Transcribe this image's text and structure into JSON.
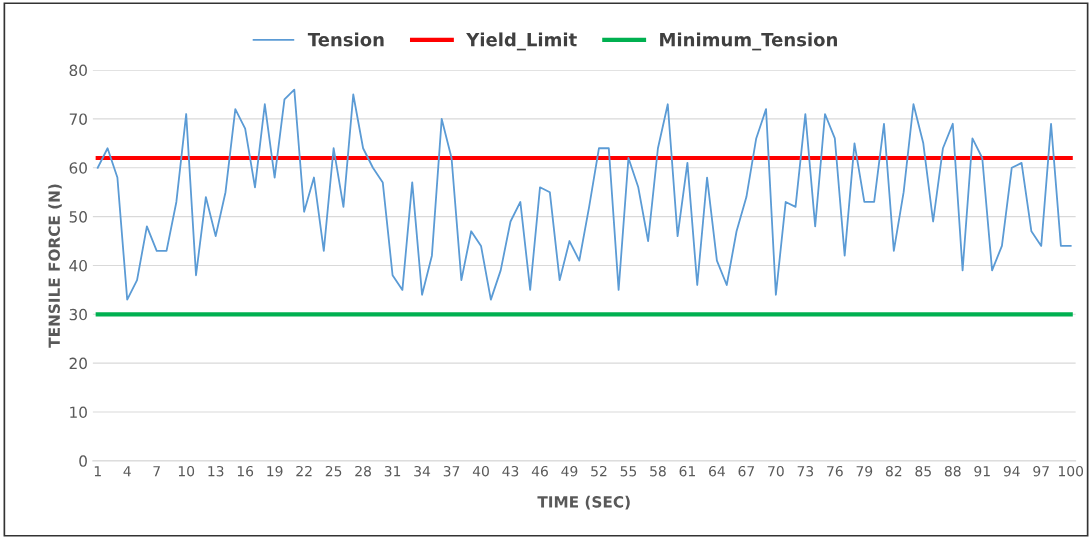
{
  "chart_data": {
    "type": "line",
    "xlabel": "TIME (SEC)",
    "ylabel": "TENSILE FORCE (N)",
    "categories": [
      "1",
      null,
      null,
      "4",
      null,
      null,
      "7",
      null,
      null,
      "10",
      null,
      null,
      "13",
      null,
      null,
      "16",
      null,
      null,
      "19",
      null,
      null,
      "22",
      null,
      null,
      "25",
      null,
      null,
      "28",
      null,
      null,
      "31",
      null,
      null,
      "34",
      null,
      null,
      "37",
      null,
      null,
      "40",
      null,
      null,
      "43",
      null,
      null,
      "46",
      null,
      null,
      "49",
      null,
      null,
      "52",
      null,
      null,
      "55",
      null,
      null,
      "58",
      null,
      null,
      "61",
      null,
      null,
      "64",
      null,
      null,
      "67",
      null,
      null,
      "70",
      null,
      null,
      "73",
      null,
      null,
      "76",
      null,
      null,
      "79",
      null,
      null,
      "82",
      null,
      null,
      "85",
      null,
      null,
      "88",
      null,
      null,
      "91",
      null,
      null,
      "94",
      null,
      null,
      "97",
      null,
      null,
      "100"
    ],
    "series": [
      {
        "name": "Tension",
        "color": "#5b9bd5",
        "values": [
          60,
          64,
          58,
          33,
          37,
          48,
          43,
          43,
          53,
          71,
          38,
          54,
          46,
          55,
          72,
          68,
          56,
          73,
          58,
          74,
          76,
          51,
          58,
          43,
          64,
          52,
          75,
          64,
          60,
          57,
          38,
          35,
          57,
          34,
          42,
          70,
          62,
          37,
          47,
          44,
          33,
          39,
          49,
          53,
          35,
          56,
          55,
          37,
          45,
          41,
          52,
          64,
          64,
          35,
          62,
          56,
          45,
          64,
          73,
          46,
          61,
          36,
          58,
          41,
          36,
          47,
          54,
          66,
          72,
          34,
          53,
          52,
          71,
          48,
          71,
          66,
          42,
          65,
          53,
          53,
          69,
          43,
          55,
          73,
          65,
          49,
          64,
          69,
          39,
          66,
          62,
          39,
          44,
          60,
          61,
          47,
          44,
          69,
          44,
          44
        ]
      }
    ],
    "ref_lines": [
      {
        "axis": "y",
        "value": 62,
        "label": "Yield_Limit",
        "color": "#ff0000"
      },
      {
        "axis": "y",
        "value": 30,
        "label": "Minimum_Tension",
        "color": "#00b050"
      }
    ],
    "ylim": [
      0,
      80
    ],
    "yticks": [
      0,
      10,
      20,
      30,
      40,
      50,
      60,
      70,
      80
    ],
    "grid": "y",
    "legend": "top",
    "line_style": "solid",
    "marker": "none"
  }
}
